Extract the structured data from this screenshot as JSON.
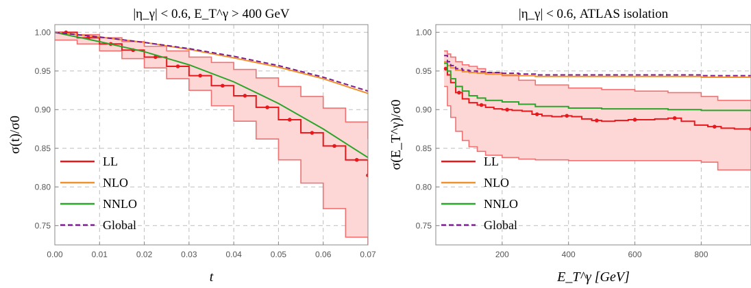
{
  "chart_data": [
    {
      "type": "line",
      "title": "|η_γ| < 0.6, E_T^γ > 400 GeV",
      "xlabel": "t",
      "ylabel": "σ(t)/σ0",
      "xlim": [
        0,
        0.07
      ],
      "ylim": [
        0.725,
        1.01
      ],
      "xticks": [
        "0.00",
        "0.01",
        "0.02",
        "0.03",
        "0.04",
        "0.05",
        "0.06",
        "0.07"
      ],
      "yticks": [
        "0.75",
        "0.80",
        "0.85",
        "0.90",
        "0.95",
        "1.00"
      ],
      "grid": true,
      "legend_position": "bottom-left",
      "series": [
        {
          "name": "LL",
          "color": "#e8171b",
          "style": "solid-with-points",
          "x": [
            0.0,
            0.005,
            0.01,
            0.015,
            0.02,
            0.025,
            0.03,
            0.035,
            0.04,
            0.045,
            0.05,
            0.055,
            0.06,
            0.065,
            0.07
          ],
          "y": [
            1.0,
            0.993,
            0.985,
            0.977,
            0.968,
            0.956,
            0.944,
            0.931,
            0.918,
            0.903,
            0.887,
            0.87,
            0.853,
            0.835,
            0.815
          ]
        },
        {
          "name": "NLO",
          "color": "#f0912d",
          "style": "solid",
          "x": [
            0.0,
            0.01,
            0.02,
            0.03,
            0.04,
            0.05,
            0.06,
            0.07
          ],
          "y": [
            1.0,
            0.994,
            0.987,
            0.978,
            0.967,
            0.955,
            0.94,
            0.921
          ]
        },
        {
          "name": "NNLO",
          "color": "#2aa52a",
          "style": "solid",
          "x": [
            0.0,
            0.01,
            0.02,
            0.03,
            0.04,
            0.05,
            0.06,
            0.07
          ],
          "y": [
            1.0,
            0.988,
            0.975,
            0.958,
            0.936,
            0.908,
            0.875,
            0.838
          ]
        },
        {
          "name": "Global",
          "color": "#7b1a8e",
          "style": "dashed",
          "x": [
            0.0,
            0.01,
            0.02,
            0.03,
            0.04,
            0.05,
            0.06,
            0.07
          ],
          "y": [
            1.0,
            0.994,
            0.987,
            0.979,
            0.969,
            0.957,
            0.942,
            0.924
          ]
        }
      ],
      "band": {
        "series": "LL",
        "x": [
          0.0,
          0.005,
          0.01,
          0.015,
          0.02,
          0.025,
          0.03,
          0.035,
          0.04,
          0.045,
          0.05,
          0.055,
          0.06,
          0.065,
          0.07
        ],
        "upper": [
          1.0,
          0.997,
          0.993,
          0.988,
          0.982,
          0.976,
          0.968,
          0.961,
          0.952,
          0.941,
          0.93,
          0.917,
          0.902,
          0.884,
          0.862
        ],
        "lower": [
          0.99,
          0.985,
          0.976,
          0.966,
          0.954,
          0.94,
          0.925,
          0.905,
          0.885,
          0.862,
          0.835,
          0.805,
          0.772,
          0.735,
          0.7
        ]
      }
    },
    {
      "type": "line",
      "title": "|η_γ| < 0.6, ATLAS isolation",
      "xlabel": "E_T^γ [GeV]",
      "ylabel": "σ(E_T^γ)/σ0",
      "xlim": [
        0,
        950
      ],
      "ylim": [
        0.725,
        1.01
      ],
      "xticks": [
        "200",
        "400",
        "600",
        "800"
      ],
      "yticks": [
        "0.75",
        "0.80",
        "0.85",
        "0.90",
        "0.95",
        "1.00"
      ],
      "grid": true,
      "legend_position": "bottom-left",
      "series": [
        {
          "name": "LL",
          "color": "#e8171b",
          "style": "solid-with-points",
          "x": [
            25,
            35,
            45,
            60,
            80,
            100,
            125,
            150,
            175,
            200,
            230,
            260,
            290,
            320,
            350,
            380,
            410,
            440,
            470,
            500,
            540,
            580,
            620,
            660,
            700,
            740,
            780,
            820,
            860,
            900,
            950
          ],
          "y": [
            0.953,
            0.945,
            0.935,
            0.922,
            0.914,
            0.909,
            0.906,
            0.903,
            0.901,
            0.9,
            0.899,
            0.898,
            0.894,
            0.892,
            0.891,
            0.892,
            0.891,
            0.888,
            0.886,
            0.885,
            0.886,
            0.887,
            0.887,
            0.888,
            0.889,
            0.885,
            0.88,
            0.878,
            0.876,
            0.875,
            0.875
          ]
        },
        {
          "name": "NLO",
          "color": "#f0912d",
          "style": "solid",
          "x": [
            25,
            35,
            45,
            60,
            80,
            100,
            125,
            150,
            200,
            250,
            300,
            400,
            500,
            600,
            700,
            800,
            950
          ],
          "y": [
            0.962,
            0.957,
            0.954,
            0.951,
            0.949,
            0.948,
            0.947,
            0.946,
            0.945,
            0.944,
            0.943,
            0.943,
            0.943,
            0.943,
            0.943,
            0.942,
            0.942
          ]
        },
        {
          "name": "NNLO",
          "color": "#2aa52a",
          "style": "solid",
          "x": [
            25,
            35,
            45,
            60,
            80,
            100,
            125,
            150,
            200,
            250,
            300,
            400,
            500,
            600,
            700,
            800,
            950
          ],
          "y": [
            0.96,
            0.95,
            0.94,
            0.93,
            0.924,
            0.918,
            0.915,
            0.912,
            0.91,
            0.907,
            0.904,
            0.902,
            0.901,
            0.901,
            0.9,
            0.899,
            0.898
          ]
        },
        {
          "name": "Global",
          "color": "#7b1a8e",
          "style": "dashed",
          "x": [
            25,
            35,
            45,
            60,
            80,
            100,
            125,
            150,
            200,
            250,
            300,
            400,
            500,
            600,
            700,
            800,
            950
          ],
          "y": [
            0.97,
            0.962,
            0.957,
            0.953,
            0.951,
            0.95,
            0.949,
            0.948,
            0.947,
            0.946,
            0.945,
            0.945,
            0.945,
            0.945,
            0.945,
            0.944,
            0.944
          ]
        }
      ],
      "band": {
        "series": "LL",
        "x": [
          25,
          35,
          45,
          60,
          80,
          100,
          125,
          150,
          200,
          250,
          300,
          400,
          500,
          600,
          700,
          800,
          850,
          950
        ],
        "upper": [
          0.976,
          0.972,
          0.968,
          0.962,
          0.958,
          0.956,
          0.953,
          0.948,
          0.944,
          0.938,
          0.932,
          0.928,
          0.926,
          0.924,
          0.922,
          0.917,
          0.912,
          0.912
        ],
        "lower": [
          0.93,
          0.905,
          0.89,
          0.872,
          0.86,
          0.852,
          0.846,
          0.841,
          0.838,
          0.836,
          0.835,
          0.834,
          0.834,
          0.834,
          0.834,
          0.832,
          0.822,
          0.822
        ]
      }
    }
  ]
}
